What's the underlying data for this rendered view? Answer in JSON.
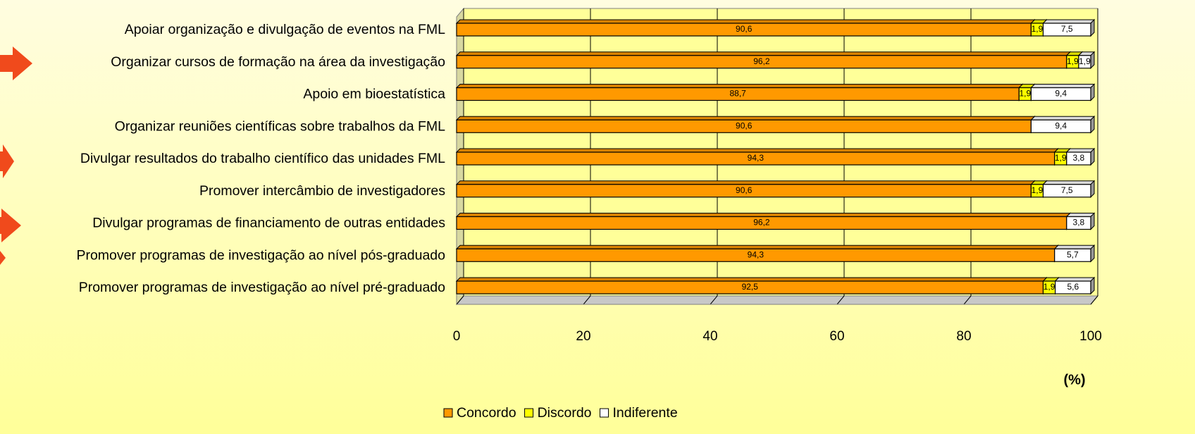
{
  "chart_data": {
    "type": "stacked-barh",
    "categories": [
      "Apoiar organização e divulgação de eventos na FML",
      "Organizar cursos de formação na área da investigação",
      "Apoio em bioestatística",
      "Organizar reuniões científicas sobre trabalhos da FML",
      "Divulgar resultados do trabalho científico das unidades FML",
      "Promover intercâmbio de investigadores",
      "Divulgar programas de financiamento de outras entidades",
      "Promover programas de investigação ao nível pós-graduado",
      "Promover programas de investigação ao nível pré-graduado"
    ],
    "series": [
      {
        "name": "Concordo",
        "color": "#ff9900",
        "values": [
          90.6,
          96.2,
          88.7,
          90.6,
          94.3,
          90.6,
          96.2,
          94.3,
          92.5
        ],
        "value_labels": [
          "90,6",
          "96,2",
          "88,7",
          "90,6",
          "94,3",
          "90,6",
          "96,2",
          "94,3",
          "92,5"
        ]
      },
      {
        "name": "Discordo",
        "color": "#ffff00",
        "values": [
          1.9,
          1.9,
          1.9,
          null,
          1.9,
          1.9,
          null,
          null,
          1.9
        ],
        "value_labels": [
          "1,9",
          "1,9",
          "1,9",
          null,
          "1,9",
          "1,9",
          null,
          null,
          "1,9"
        ]
      },
      {
        "name": "Indiferente",
        "color": "#ffffff",
        "values": [
          7.5,
          1.9,
          9.4,
          9.4,
          3.8,
          7.5,
          3.8,
          5.7,
          5.6
        ],
        "value_labels": [
          "7,5",
          "1,9",
          "9,4",
          "9,4",
          "3,8",
          "7,5",
          "3,8",
          "5,7",
          "5,6"
        ]
      }
    ],
    "xlim": [
      0,
      100
    ],
    "xticks": [
      0,
      20,
      40,
      60,
      80,
      100
    ],
    "xlabel": "(%)",
    "grid": true,
    "legend": "bottom"
  }
}
